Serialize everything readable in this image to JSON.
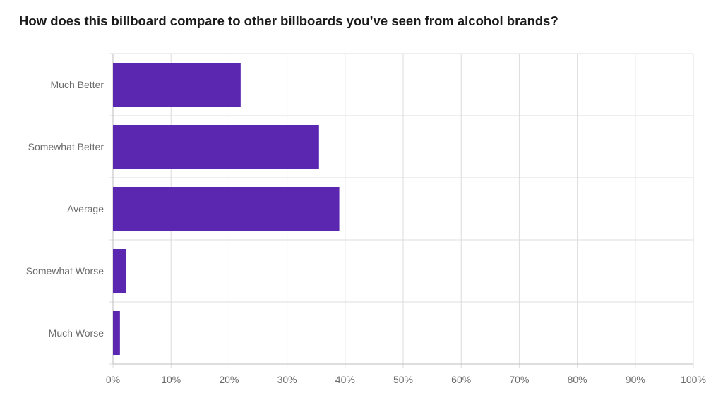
{
  "chart_data": {
    "type": "bar",
    "orientation": "horizontal",
    "title": "How does this billboard compare to other billboards you’ve seen from alcohol brands?",
    "categories": [
      "Much Better",
      "Somewhat Better",
      "Average",
      "Somewhat Worse",
      "Much Worse"
    ],
    "values": [
      22,
      35.5,
      39,
      2.2,
      1.2
    ],
    "xlim": [
      0,
      100
    ],
    "x_ticks": [
      "0%",
      "10%",
      "20%",
      "30%",
      "40%",
      "50%",
      "60%",
      "70%",
      "80%",
      "90%",
      "100%"
    ],
    "grid": true,
    "bar_color": "#5b27b0",
    "grid_color": "#dcdcdc"
  }
}
